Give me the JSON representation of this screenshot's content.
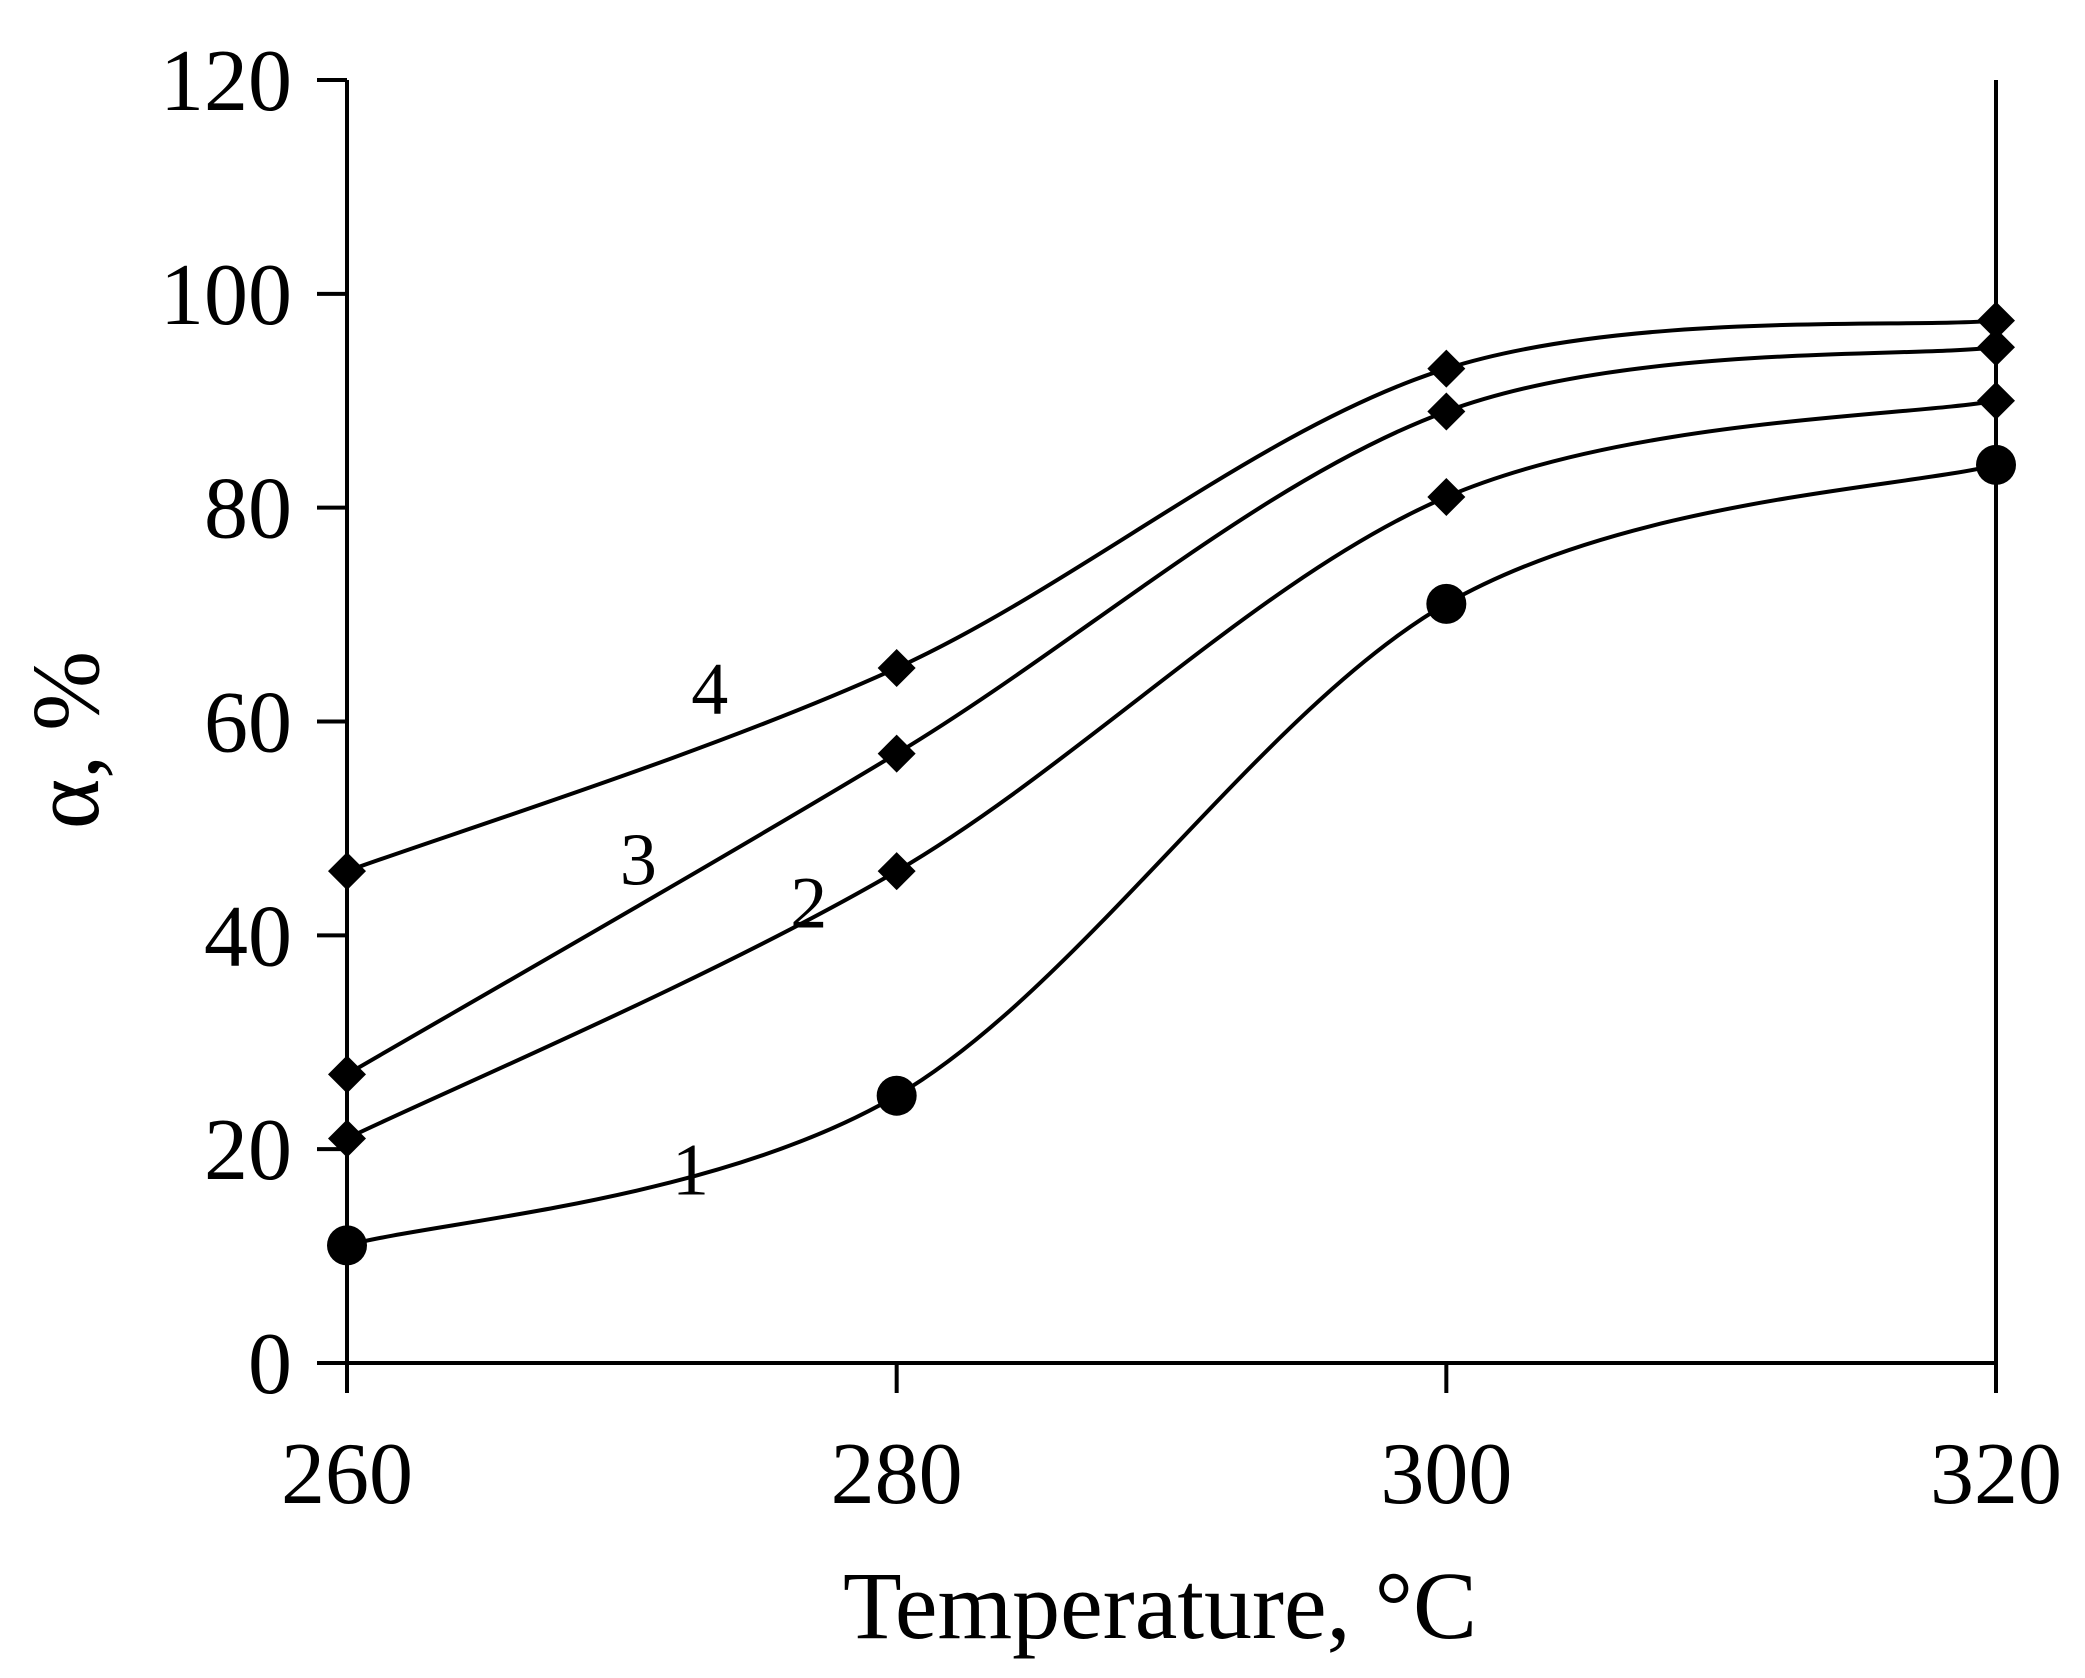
{
  "chart_data": {
    "type": "line",
    "title": "",
    "xlabel": "Temperature, °C",
    "ylabel": "α, %",
    "x": [
      260,
      280,
      300,
      320
    ],
    "xlim": [
      260,
      320
    ],
    "ylim": [
      0,
      120
    ],
    "xticks": [
      "260",
      "280",
      "300",
      "320"
    ],
    "yticks": [
      "0",
      "20",
      "40",
      "60",
      "80",
      "100",
      "120"
    ],
    "grid": false,
    "legend": "none",
    "series": [
      {
        "name": "1",
        "marker": "circle",
        "values": [
          11,
          25,
          71,
          84
        ]
      },
      {
        "name": "2",
        "marker": "diamond",
        "values": [
          21,
          46,
          81,
          90
        ]
      },
      {
        "name": "3",
        "marker": "diamond",
        "values": [
          27,
          57,
          89,
          95
        ]
      },
      {
        "name": "4",
        "marker": "diamond",
        "values": [
          46,
          65,
          93,
          97.5
        ]
      }
    ],
    "annotations": [
      {
        "text": "1",
        "series": "1"
      },
      {
        "text": "2",
        "series": "2"
      },
      {
        "text": "3",
        "series": "3"
      },
      {
        "text": "4",
        "series": "4"
      }
    ]
  },
  "colors": {
    "ink": "#000000",
    "background": "#ffffff"
  }
}
